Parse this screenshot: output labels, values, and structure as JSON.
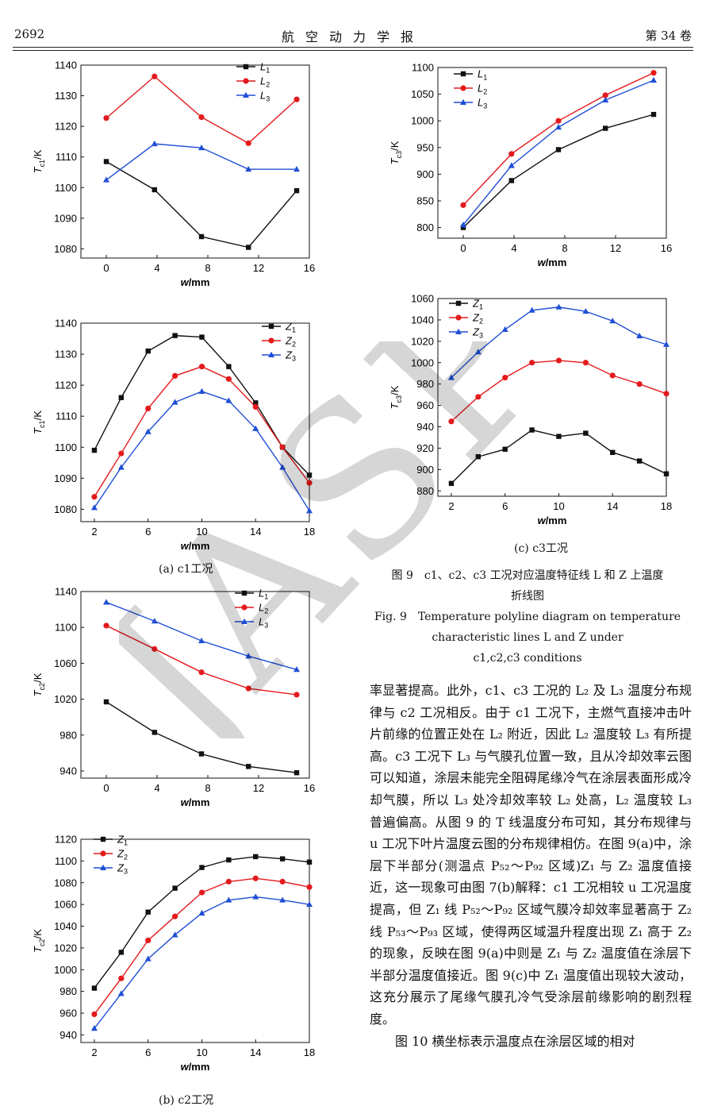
{
  "header": {
    "page_number": "2692",
    "journal": "航空动力学报",
    "volume": "第 34 卷"
  },
  "watermark": "JASP",
  "subcaptions": {
    "a": "(a) c1工况",
    "b": "(b) c2工况",
    "c": "(c) c3工况"
  },
  "figure_caption": {
    "zh_line1": "图 9　c1、c2、c3 工况对应温度特征线 L 和 Z 上温度",
    "zh_line2": "折线图",
    "en_line1": "Fig. 9　Temperature polyline diagram on temperature",
    "en_line2": "characteristic lines L and Z under",
    "en_line3": "c1,c2,c3 conditions"
  },
  "body_text": {
    "p1": "率显著提高。此外，c1、c3 工况的 L₂ 及 L₃ 温度分布规律与 c2 工况相反。由于 c1 工况下，主燃气直接冲击叶片前缘的位置正处在 L₂ 附近，因此 L₂ 温度较 L₃ 有所提高。c3 工况下 L₃ 与气膜孔位置一致，且从冷却效率云图可以知道，涂层未能完全阻碍尾缘冷气在涂层表面形成冷却气膜，所以 L₃ 处冷却效率较 L₂ 处高，L₂ 温度较 L₃ 普遍偏高。从图 9 的 T 线温度分布可知，其分布规律与 u 工况下叶片温度云图的分布规律相仿。在图 9(a)中，涂层下半部分(测温点 P₅₂～P₉₂ 区域)Z₁ 与 Z₂ 温度值接近，这一现象可由图 7(b)解释：c1 工况相较 u 工况温度提高，但 Z₁ 线 P₅₂～P₉₂ 区域气膜冷却效率显著高于 Z₂ 线 P₅₃～P₉₃ 区域，使得两区域温升程度出现 Z₁ 高于 Z₂ 的现象，反映在图 9(a)中则是 Z₁ 与 Z₂ 温度值在涂层下半部分温度值接近。图 9(c)中 Z₁ 温度值出现较大波动，这充分展示了尾缘气膜孔冷气受涂层前缘影响的剧烈程度。",
    "p2": "图 10 横坐标表示温度点在涂层区域的相对"
  },
  "colors": {
    "s1": "#111111",
    "s2": "#e41a1c",
    "s3": "#1f4fd6"
  },
  "chart_data": [
    {
      "id": "c1L",
      "type": "line",
      "ylabel_main": "T",
      "ylabel_sub": "c1",
      "ylabel_unit": "/K",
      "xlabel_main": "w",
      "xlabel_unit": "/mm",
      "xlim": [
        -2,
        16
      ],
      "xticks": [
        0,
        4,
        8,
        12,
        16
      ],
      "ylim": [
        1077,
        1140
      ],
      "yticks": [
        1080,
        1090,
        1100,
        1110,
        1120,
        1130,
        1140
      ],
      "legend": [
        "L",
        "L",
        "L"
      ],
      "legend_sub": [
        "1",
        "2",
        "3"
      ],
      "x": [
        0,
        3.8,
        7.5,
        11.2,
        15
      ],
      "series": [
        {
          "values": [
            1108.5,
            1099.3,
            1084,
            1080.5,
            1099
          ]
        },
        {
          "values": [
            1122.7,
            1136.3,
            1123,
            1114.5,
            1128.8
          ]
        },
        {
          "values": [
            1102.5,
            1114.3,
            1113,
            1106,
            1106
          ]
        }
      ]
    },
    {
      "id": "c1Z",
      "type": "line",
      "ylabel_main": "T",
      "ylabel_sub": "c1",
      "ylabel_unit": "/K",
      "xlabel_main": "w",
      "xlabel_unit": "/mm",
      "xlim": [
        1,
        18
      ],
      "xticks": [
        2,
        6,
        10,
        14,
        18
      ],
      "ylim": [
        1076,
        1140
      ],
      "yticks": [
        1080,
        1090,
        1100,
        1110,
        1120,
        1130,
        1140
      ],
      "legend": [
        "Z",
        "Z",
        "Z"
      ],
      "legend_sub": [
        "1",
        "2",
        "3"
      ],
      "x": [
        2,
        4,
        6,
        8,
        10,
        12,
        14,
        16,
        18
      ],
      "series": [
        {
          "values": [
            1099,
            1116,
            1131,
            1136,
            1135.5,
            1126,
            1114.3,
            1100,
            1091
          ]
        },
        {
          "values": [
            1084,
            1098,
            1112.5,
            1123,
            1126,
            1122,
            1113,
            1100,
            1088.5
          ]
        },
        {
          "values": [
            1080.5,
            1093.5,
            1105,
            1114.5,
            1118,
            1115,
            1106,
            1093.5,
            1079.5
          ]
        }
      ]
    },
    {
      "id": "c2L",
      "type": "line",
      "ylabel_main": "T",
      "ylabel_sub": "c2",
      "ylabel_unit": "/K",
      "xlabel_main": "w",
      "xlabel_unit": "/mm",
      "xlim": [
        -2,
        16
      ],
      "xticks": [
        0,
        4,
        8,
        12,
        16
      ],
      "ylim": [
        932,
        1140
      ],
      "yticks": [
        940,
        980,
        1020,
        1060,
        1100,
        1140
      ],
      "legend": [
        "L",
        "L",
        "L"
      ],
      "legend_sub": [
        "1",
        "2",
        "3"
      ],
      "x": [
        0,
        3.8,
        7.5,
        11.2,
        15
      ],
      "series": [
        {
          "values": [
            1017,
            983,
            959,
            945,
            938
          ]
        },
        {
          "values": [
            1102,
            1076,
            1050,
            1032,
            1025
          ]
        },
        {
          "values": [
            1128,
            1107,
            1085,
            1068,
            1053
          ]
        }
      ]
    },
    {
      "id": "c2Z",
      "type": "line",
      "ylabel_main": "T",
      "ylabel_sub": "c2",
      "ylabel_unit": "/K",
      "xlabel_main": "w",
      "xlabel_unit": "/mm",
      "xlim": [
        1,
        18
      ],
      "xticks": [
        2,
        6,
        10,
        14,
        18
      ],
      "ylim": [
        933,
        1120
      ],
      "yticks": [
        940,
        960,
        980,
        1000,
        1020,
        1040,
        1060,
        1080,
        1100,
        1120
      ],
      "legend": [
        "Z",
        "Z",
        "Z"
      ],
      "legend_sub": [
        "1",
        "2",
        "3"
      ],
      "x": [
        2,
        4,
        6,
        8,
        10,
        12,
        14,
        16,
        18
      ],
      "series": [
        {
          "values": [
            983,
            1016,
            1053,
            1075,
            1094,
            1101,
            1104,
            1102,
            1099
          ]
        },
        {
          "values": [
            959,
            992,
            1027,
            1049,
            1071,
            1081,
            1084,
            1081,
            1076
          ]
        },
        {
          "values": [
            946,
            978,
            1010,
            1032,
            1052,
            1064,
            1067,
            1064,
            1060
          ]
        }
      ]
    },
    {
      "id": "c3L",
      "type": "line",
      "ylabel_main": "T",
      "ylabel_sub": "c3",
      "ylabel_unit": "/K",
      "xlabel_main": "w",
      "xlabel_unit": "/mm",
      "xlim": [
        -2,
        16
      ],
      "xticks": [
        0,
        4,
        8,
        12,
        16
      ],
      "ylim": [
        780,
        1100
      ],
      "yticks": [
        800,
        850,
        900,
        950,
        1000,
        1050,
        1100
      ],
      "legend": [
        "L",
        "L",
        "L"
      ],
      "legend_sub": [
        "1",
        "2",
        "3"
      ],
      "x": [
        0,
        3.8,
        7.5,
        11.2,
        15
      ],
      "series": [
        {
          "values": [
            800,
            888,
            946,
            986,
            1012
          ]
        },
        {
          "values": [
            842,
            938,
            1000,
            1048,
            1090
          ]
        },
        {
          "values": [
            805,
            916,
            988,
            1039,
            1076
          ]
        }
      ]
    },
    {
      "id": "c3Z",
      "type": "line",
      "ylabel_main": "T",
      "ylabel_sub": "c3",
      "ylabel_unit": "/K",
      "xlabel_main": "w",
      "xlabel_unit": "/mm",
      "xlim": [
        1,
        18
      ],
      "xticks": [
        2,
        6,
        10,
        14,
        18
      ],
      "ylim": [
        875,
        1060
      ],
      "yticks": [
        880,
        900,
        920,
        940,
        960,
        980,
        1000,
        1020,
        1040,
        1060
      ],
      "legend": [
        "Z",
        "Z",
        "Z"
      ],
      "legend_sub": [
        "1",
        "2",
        "3"
      ],
      "x": [
        2,
        4,
        6,
        8,
        10,
        12,
        14,
        16,
        18
      ],
      "series": [
        {
          "values": [
            887,
            912,
            919,
            937,
            931,
            934,
            916,
            908,
            896
          ]
        },
        {
          "values": [
            945,
            968,
            986,
            1000,
            1002,
            1000,
            988,
            980,
            971
          ]
        },
        {
          "values": [
            986,
            1010,
            1031,
            1049,
            1052,
            1048,
            1039,
            1025,
            1017
          ]
        }
      ]
    }
  ]
}
